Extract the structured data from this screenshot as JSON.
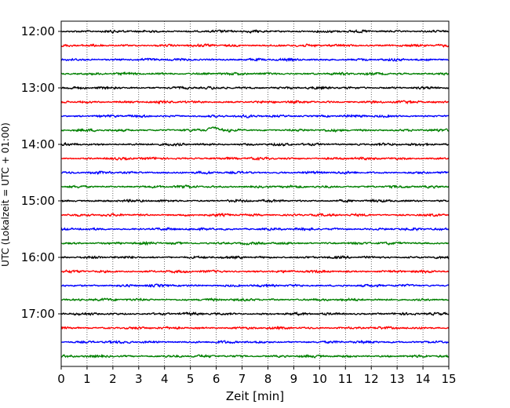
{
  "chart_data": {
    "type": "line",
    "title": "",
    "xlabel": "Zeit  [min]",
    "ylabel": "UTC (Lokalzeit = UTC + 01:00)",
    "xlim": [
      0,
      15
    ],
    "x_ticks": [
      0,
      1,
      2,
      3,
      4,
      5,
      6,
      7,
      8,
      9,
      10,
      11,
      12,
      13,
      14,
      15
    ],
    "y_tick_labels": [
      "12:00",
      "13:00",
      "14:00",
      "15:00",
      "16:00",
      "17:00"
    ],
    "grid": "vertical dotted at each minute",
    "trace_interval_minutes": 15,
    "trace_colors": [
      "#000000",
      "#ff0000",
      "#0000ff",
      "#008000"
    ],
    "traces": [
      {
        "start": "12:00",
        "color": "#000000"
      },
      {
        "start": "12:15",
        "color": "#ff0000"
      },
      {
        "start": "12:30",
        "color": "#0000ff"
      },
      {
        "start": "12:45",
        "color": "#008000"
      },
      {
        "start": "13:00",
        "color": "#000000"
      },
      {
        "start": "13:15",
        "color": "#ff0000"
      },
      {
        "start": "13:30",
        "color": "#0000ff"
      },
      {
        "start": "13:45",
        "color": "#008000",
        "event_minute": 5.6
      },
      {
        "start": "14:00",
        "color": "#000000"
      },
      {
        "start": "14:15",
        "color": "#ff0000"
      },
      {
        "start": "14:30",
        "color": "#0000ff"
      },
      {
        "start": "14:45",
        "color": "#008000"
      },
      {
        "start": "15:00",
        "color": "#000000"
      },
      {
        "start": "15:15",
        "color": "#ff0000"
      },
      {
        "start": "15:30",
        "color": "#0000ff"
      },
      {
        "start": "15:45",
        "color": "#008000"
      },
      {
        "start": "16:00",
        "color": "#000000"
      },
      {
        "start": "16:15",
        "color": "#ff0000"
      },
      {
        "start": "16:30",
        "color": "#0000ff"
      },
      {
        "start": "16:45",
        "color": "#008000"
      },
      {
        "start": "17:00",
        "color": "#000000"
      },
      {
        "start": "17:15",
        "color": "#ff0000"
      },
      {
        "start": "17:30",
        "color": "#0000ff"
      },
      {
        "start": "17:45",
        "color": "#008000"
      }
    ]
  }
}
